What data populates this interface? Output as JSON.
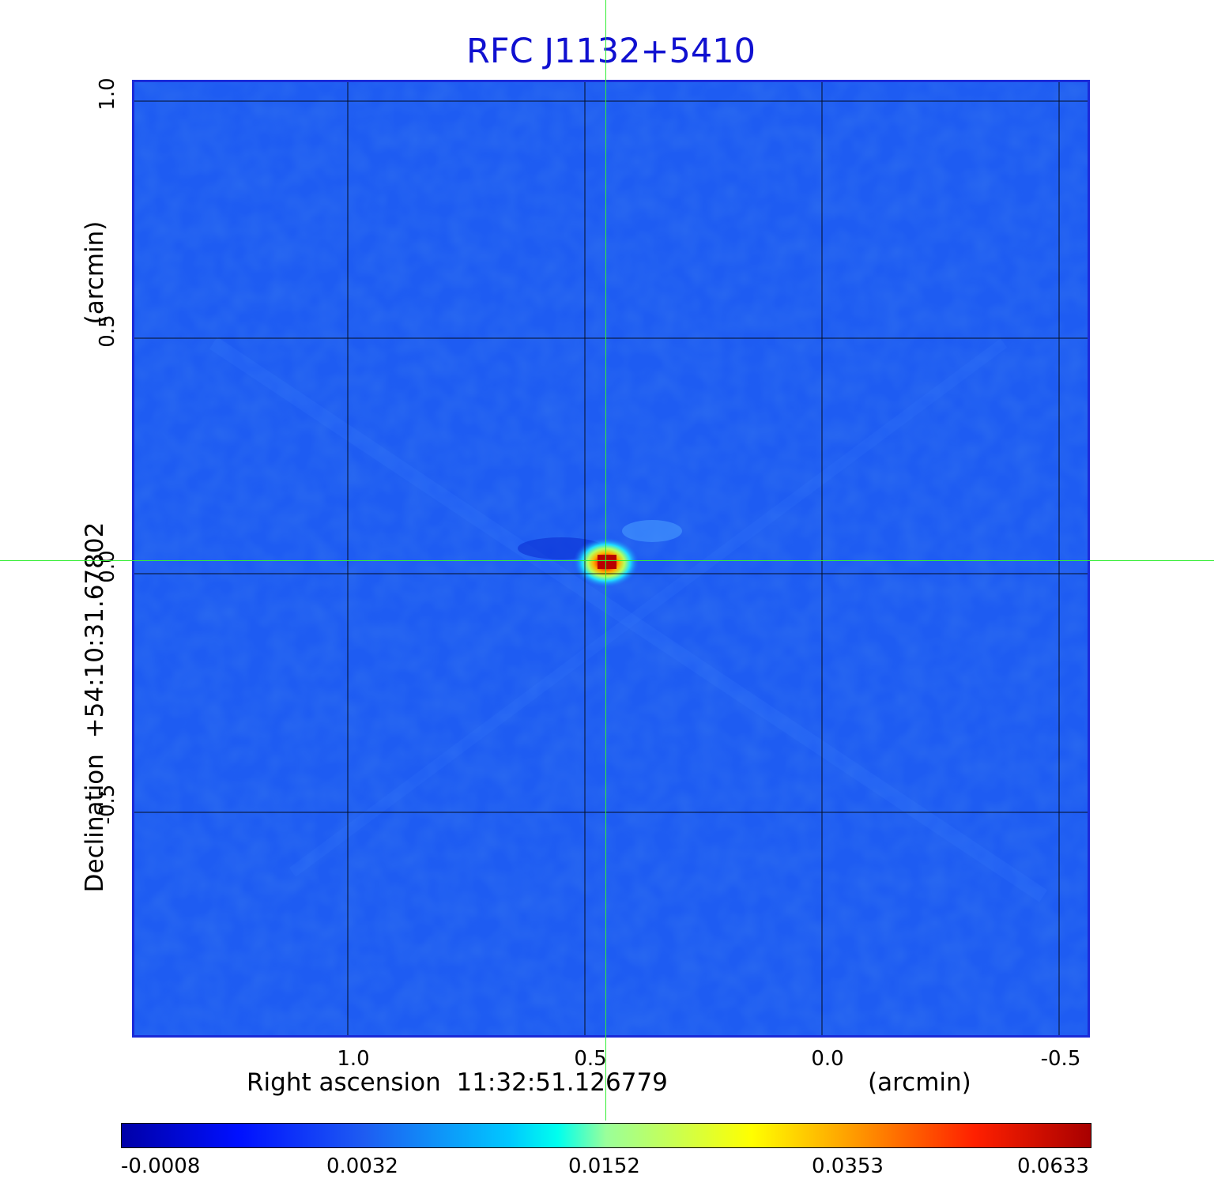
{
  "title": "RFC J1132+5410",
  "x_axis": {
    "label": "Right ascension  11:32:51.126779",
    "unit": "(arcmin)",
    "ticks": [
      "1.0",
      "0.5",
      "0.0",
      "-0.5"
    ]
  },
  "y_axis": {
    "label": "Declination  +54:10:31.67802",
    "unit": "(arcmin)",
    "ticks": [
      "1.0",
      "0.5",
      "0.0",
      "-0.5"
    ]
  },
  "colorbar": {
    "ticks": [
      "-0.0008",
      "0.0032",
      "0.0152",
      "0.0353",
      "0.0633"
    ]
  },
  "colors": {
    "title": "#1010d0",
    "frame": "#1a2ad8",
    "background_field": "#1e5cf2",
    "crosshair": "#33ee33",
    "grid": "#000000"
  }
}
